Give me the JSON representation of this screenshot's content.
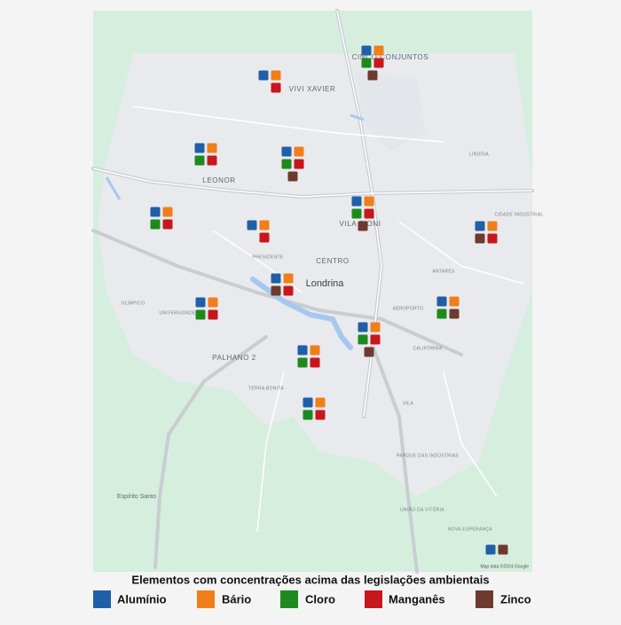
{
  "map": {
    "place_labels": [
      "VIVI XAVIER",
      "LEONOR",
      "VILA SIONI",
      "CENTRO",
      "Londrina",
      "PALHANO 2",
      "Espírito Santo",
      "CIDADE INDUSTRIAL",
      "CINCO CONJUNTOS",
      "LINDÓIA",
      "AEROPORTO",
      "ANTARES",
      "CALIFÓRNIA",
      "PRESIDENTE",
      "OLÍMPICO",
      "UNIVERSIDADE",
      "TERRA BONITA",
      "VILA",
      "PARQUE DAS INDÚSTRIAS",
      "NOVA ESPERANÇA",
      "UNIÃO DA VITÓRIA"
    ],
    "attribution": "Map data ©2024 Google"
  },
  "sites": [
    {
      "cells": [
        [
          "Alumínio",
          "Bário"
        ],
        [
          "Cloro",
          "Manganês"
        ],
        [
          "Zinco"
        ]
      ]
    },
    {
      "cells": [
        [
          "Alumínio",
          "Bário"
        ],
        [
          null,
          "Manganês"
        ]
      ]
    },
    {
      "cells": [
        [
          "Alumínio",
          "Bário"
        ],
        [
          "Cloro",
          "Manganês"
        ]
      ]
    },
    {
      "cells": [
        [
          "Alumínio",
          "Bário"
        ],
        [
          "Cloro",
          "Manganês"
        ],
        [
          "Zinco"
        ]
      ]
    },
    {
      "cells": [
        [
          "Alumínio",
          "Bário"
        ],
        [
          "Cloro",
          "Manganês"
        ]
      ]
    },
    {
      "cells": [
        [
          "Alumínio",
          "Bário"
        ],
        [
          null,
          "Manganês"
        ]
      ]
    },
    {
      "cells": [
        [
          "Alumínio",
          "Bário"
        ],
        [
          "Cloro",
          "Manganês"
        ],
        [
          "Zinco"
        ]
      ]
    },
    {
      "cells": [
        [
          "Alumínio",
          "Bário"
        ],
        [
          "Zinco",
          "Manganês"
        ]
      ]
    },
    {
      "cells": [
        [
          "Alumínio",
          "Bário"
        ],
        [
          "Zinco",
          "Manganês"
        ]
      ]
    },
    {
      "cells": [
        [
          "Alumínio",
          "Bário"
        ],
        [
          "Cloro",
          "Manganês"
        ]
      ]
    },
    {
      "cells": [
        [
          "Alumínio",
          "Bário"
        ],
        [
          "Cloro",
          "Zinco"
        ]
      ]
    },
    {
      "cells": [
        [
          "Alumínio",
          "Bário"
        ],
        [
          "Cloro",
          "Manganês"
        ],
        [
          "Zinco"
        ]
      ]
    },
    {
      "cells": [
        [
          "Alumínio",
          "Bário"
        ],
        [
          "Cloro",
          "Manganês"
        ]
      ]
    },
    {
      "cells": [
        [
          "Alumínio",
          "Bário"
        ],
        [
          "Cloro",
          "Manganês"
        ]
      ]
    },
    {
      "cells": [
        [
          "Alumínio",
          "Zinco"
        ]
      ]
    }
  ],
  "legend": {
    "title": "Elementos com concentrações acima das legislações ambientais",
    "items": [
      {
        "name": "Alumínio",
        "color": "#1f5fa8"
      },
      {
        "name": "Bário",
        "color": "#f07f19"
      },
      {
        "name": "Cloro",
        "color": "#1e8a1e"
      },
      {
        "name": "Manganês",
        "color": "#c8161d"
      },
      {
        "name": "Zinco",
        "color": "#6e3a2e"
      }
    ]
  }
}
